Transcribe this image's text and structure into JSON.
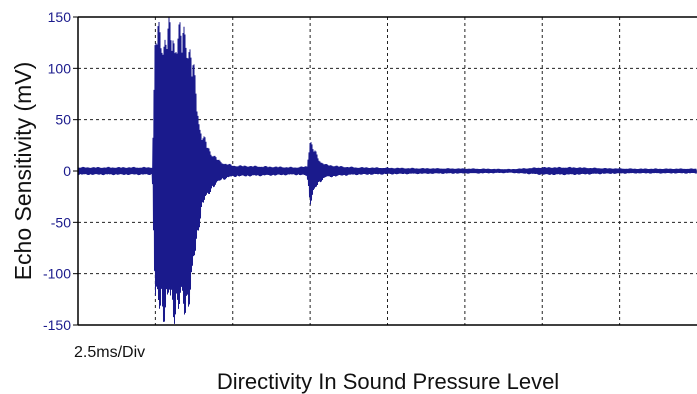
{
  "chart_data": {
    "type": "line",
    "title": "",
    "xlabel": "Directivity In Sound Pressure Level",
    "ylabel": "Echo Sensitivity (mV)",
    "x_scale_note": "2.5ms/Div",
    "x_unit": "ms",
    "xlim": [
      0,
      20
    ],
    "ylim": [
      -150,
      150
    ],
    "y_ticks": [
      150,
      100,
      50,
      0,
      -50,
      -100,
      -150
    ],
    "x_divisions": 8,
    "grid": true,
    "legend": "none",
    "series": [
      {
        "color": "#1a1a8c",
        "x": [
          0,
          1.5,
          2.4,
          2.5,
          3.0,
          3.5,
          3.7,
          3.8,
          3.9,
          4.0,
          4.3,
          4.6,
          5.0,
          6.0,
          7.0,
          7.4,
          7.5,
          7.6,
          7.8,
          8.0,
          8.5,
          9.0,
          11.0,
          13.0,
          14.0,
          15.0,
          16.0,
          17.0,
          18.0,
          20.0
        ],
        "amplitude": [
          4,
          4,
          4,
          150,
          150,
          150,
          120,
          90,
          60,
          40,
          20,
          10,
          6,
          5,
          4,
          5,
          35,
          25,
          12,
          7,
          5,
          4,
          3,
          2.5,
          2,
          4,
          4,
          3,
          2.5,
          2.5
        ]
      }
    ]
  }
}
